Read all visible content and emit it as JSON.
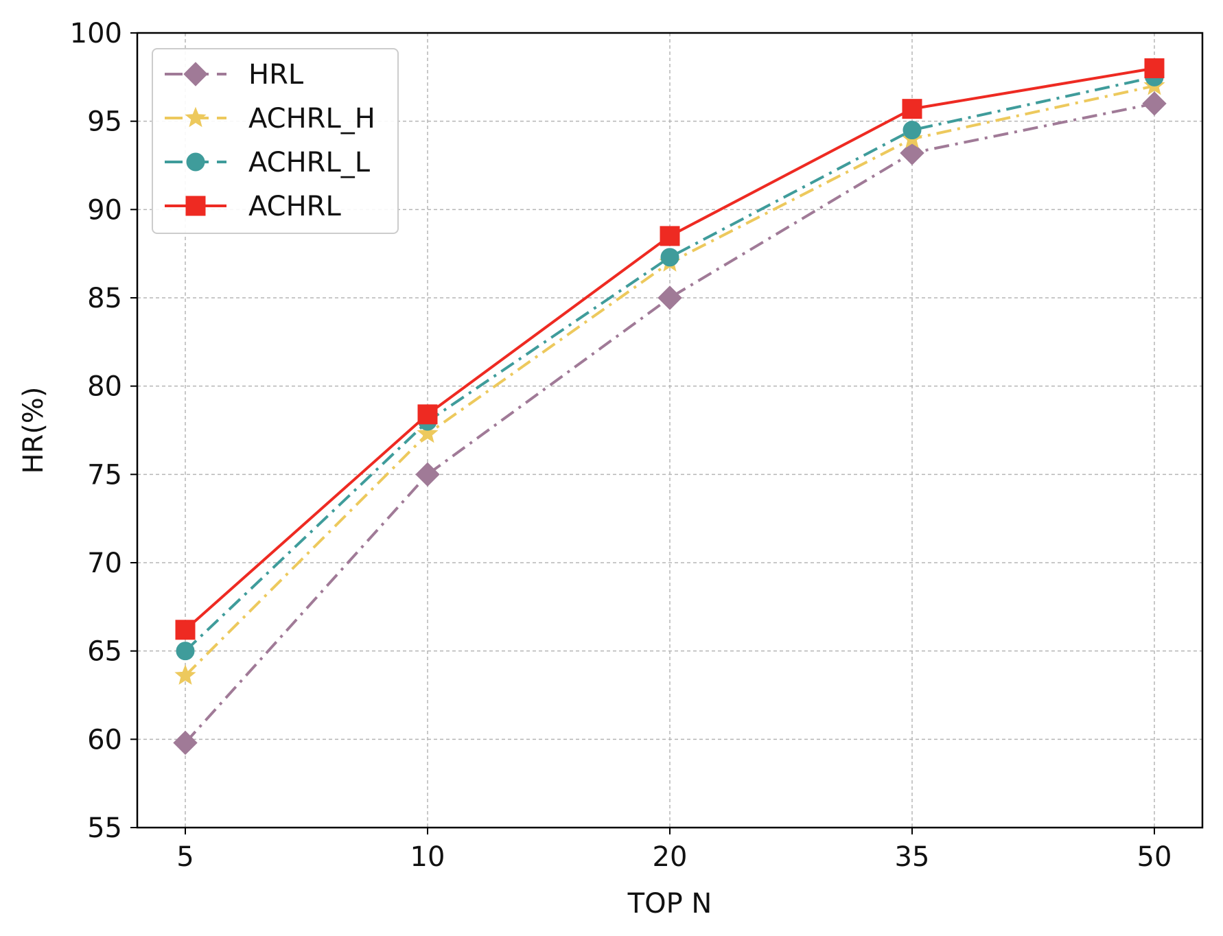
{
  "chart_data": {
    "type": "line",
    "title": "",
    "xlabel": "TOP N",
    "ylabel": "HR(%)",
    "categories": [
      "5",
      "10",
      "20",
      "35",
      "50"
    ],
    "ylim": [
      55,
      100
    ],
    "yticks": [
      55,
      60,
      65,
      70,
      75,
      80,
      85,
      90,
      95,
      100
    ],
    "grid": true,
    "legend_position": "top-left",
    "series": [
      {
        "name": "HRL",
        "values": [
          59.8,
          75.0,
          85.0,
          93.2,
          96.0
        ],
        "color": "#a07a97",
        "marker": "diamond",
        "line_style": "dashdot"
      },
      {
        "name": "ACHRL_H",
        "values": [
          63.6,
          77.3,
          87.0,
          94.0,
          97.0
        ],
        "color": "#edc95d",
        "marker": "star",
        "line_style": "dashdot"
      },
      {
        "name": "ACHRL_L",
        "values": [
          65.0,
          78.0,
          87.3,
          94.5,
          97.5
        ],
        "color": "#3f9c9b",
        "marker": "circle",
        "line_style": "dashdot"
      },
      {
        "name": "ACHRL",
        "values": [
          66.2,
          78.4,
          88.5,
          95.7,
          98.0
        ],
        "color": "#ee2a22",
        "marker": "square",
        "line_style": "solid"
      }
    ]
  }
}
